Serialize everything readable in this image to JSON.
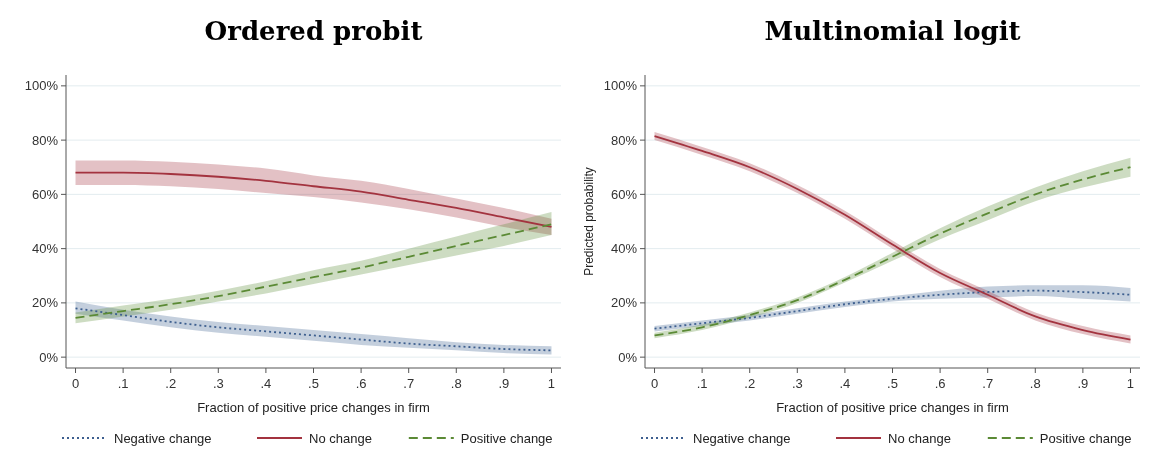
{
  "chart_data": [
    {
      "type": "line",
      "title": "Ordered probit",
      "xlabel": "Fraction of positive price changes in firm",
      "x": [
        0,
        0.1,
        0.2,
        0.3,
        0.4,
        0.5,
        0.6,
        0.7,
        0.8,
        0.9,
        1
      ],
      "xlim": [
        -0.02,
        1.02
      ],
      "xticks": [
        {
          "value": 0,
          "label": "0"
        },
        {
          "value": 0.1,
          "label": ".1"
        },
        {
          "value": 0.2,
          "label": ".2"
        },
        {
          "value": 0.3,
          "label": ".3"
        },
        {
          "value": 0.4,
          "label": ".4"
        },
        {
          "value": 0.5,
          "label": ".5"
        },
        {
          "value": 0.6,
          "label": ".6"
        },
        {
          "value": 0.7,
          "label": ".7"
        },
        {
          "value": 0.8,
          "label": ".8"
        },
        {
          "value": 0.9,
          "label": ".9"
        },
        {
          "value": 1,
          "label": "1"
        }
      ],
      "ylim": [
        -4,
        104
      ],
      "yticks": [
        {
          "value": 0,
          "label": "0%"
        },
        {
          "value": 20,
          "label": "20%"
        },
        {
          "value": 40,
          "label": "40%"
        },
        {
          "value": 60,
          "label": "60%"
        },
        {
          "value": 80,
          "label": "80%"
        },
        {
          "value": 100,
          "label": "100%"
        }
      ],
      "grid": "y",
      "legend": "bottom",
      "series": [
        {
          "name": "Negative change",
          "color": "#3d5f8f",
          "line_style": "dotted",
          "values": [
            18,
            15.5,
            13,
            11,
            9.5,
            8,
            6.5,
            5,
            4,
            3,
            2.5
          ],
          "lower": [
            16,
            13.5,
            11,
            9,
            7.5,
            6,
            4.5,
            3.5,
            2.5,
            1.5,
            1
          ],
          "upper": [
            20.5,
            17.5,
            15,
            13,
            11.5,
            10,
            8.5,
            7,
            5.5,
            4.5,
            4
          ]
        },
        {
          "name": "No change",
          "color": "#a3333f",
          "line_style": "solid",
          "values": [
            68,
            68,
            67.5,
            66.5,
            65,
            63,
            61,
            58,
            55,
            51.5,
            48
          ],
          "lower": [
            63.5,
            63.5,
            63,
            62,
            60.5,
            59,
            57,
            54.5,
            51.5,
            48,
            45
          ],
          "upper": [
            72.5,
            72.5,
            72,
            71,
            69.5,
            67,
            65,
            62,
            58.5,
            55,
            51
          ]
        },
        {
          "name": "Positive change",
          "color": "#5b8a35",
          "line_style": "dashed",
          "values": [
            14.5,
            17,
            19.5,
            22.5,
            26,
            29.5,
            33,
            37,
            41,
            45,
            49
          ],
          "lower": [
            12.5,
            15,
            17.5,
            20.5,
            23.5,
            27,
            30.5,
            34,
            37.5,
            41,
            45
          ],
          "upper": [
            16.5,
            19,
            21.5,
            24.5,
            28,
            32,
            35.5,
            40,
            44.5,
            49,
            53.5
          ]
        }
      ]
    },
    {
      "type": "line",
      "title": "Multinomial logit",
      "xlabel": "Fraction of positive price changes in firm",
      "ylabel": "Predicted probability",
      "x": [
        0,
        0.1,
        0.2,
        0.3,
        0.4,
        0.5,
        0.6,
        0.7,
        0.8,
        0.9,
        1
      ],
      "xlim": [
        -0.02,
        1.02
      ],
      "xticks": [
        {
          "value": 0,
          "label": "0"
        },
        {
          "value": 0.1,
          "label": ".1"
        },
        {
          "value": 0.2,
          "label": ".2"
        },
        {
          "value": 0.3,
          "label": ".3"
        },
        {
          "value": 0.4,
          "label": ".4"
        },
        {
          "value": 0.5,
          "label": ".5"
        },
        {
          "value": 0.6,
          "label": ".6"
        },
        {
          "value": 0.7,
          "label": ".7"
        },
        {
          "value": 0.8,
          "label": ".8"
        },
        {
          "value": 0.9,
          "label": ".9"
        },
        {
          "value": 1,
          "label": "1"
        }
      ],
      "ylim": [
        -4,
        104
      ],
      "yticks": [
        {
          "value": 0,
          "label": "0%"
        },
        {
          "value": 20,
          "label": "20%"
        },
        {
          "value": 40,
          "label": "40%"
        },
        {
          "value": 60,
          "label": "60%"
        },
        {
          "value": 80,
          "label": "80%"
        },
        {
          "value": 100,
          "label": "100%"
        }
      ],
      "grid": "y",
      "legend": "bottom",
      "series": [
        {
          "name": "Negative change",
          "color": "#3d5f8f",
          "line_style": "dotted",
          "values": [
            10.5,
            12.5,
            14.5,
            17,
            19.5,
            21.5,
            23,
            24,
            24.5,
            24,
            23
          ],
          "lower": [
            9.5,
            11.5,
            13.5,
            16,
            18.5,
            20.5,
            21.5,
            22,
            22.5,
            21.5,
            20.5
          ],
          "upper": [
            11.5,
            13.5,
            15.5,
            18,
            20.5,
            22.5,
            24.5,
            26,
            26.5,
            26.5,
            25.5
          ]
        },
        {
          "name": "No change",
          "color": "#a3333f",
          "line_style": "solid",
          "values": [
            81.5,
            76,
            70,
            62,
            52.5,
            41.5,
            31,
            23,
            15,
            10,
            6.5
          ],
          "lower": [
            80,
            74.5,
            68.5,
            60.5,
            51,
            40,
            29.5,
            21.5,
            13.5,
            8.5,
            5
          ],
          "upper": [
            83,
            77.5,
            71.5,
            63.5,
            54,
            43,
            32.5,
            24.5,
            16.5,
            11.5,
            8
          ]
        },
        {
          "name": "Positive change",
          "color": "#5b8a35",
          "line_style": "dashed",
          "values": [
            8,
            11,
            15.5,
            21,
            28.5,
            37,
            45.5,
            53,
            60,
            65.5,
            70
          ],
          "lower": [
            7,
            10,
            14.5,
            20,
            27.5,
            35.5,
            43.5,
            50.5,
            57.5,
            62.5,
            66.5
          ],
          "upper": [
            9,
            12,
            16.5,
            22,
            29.5,
            38.5,
            47.5,
            55.5,
            62.5,
            68.5,
            73.5
          ]
        }
      ]
    }
  ]
}
